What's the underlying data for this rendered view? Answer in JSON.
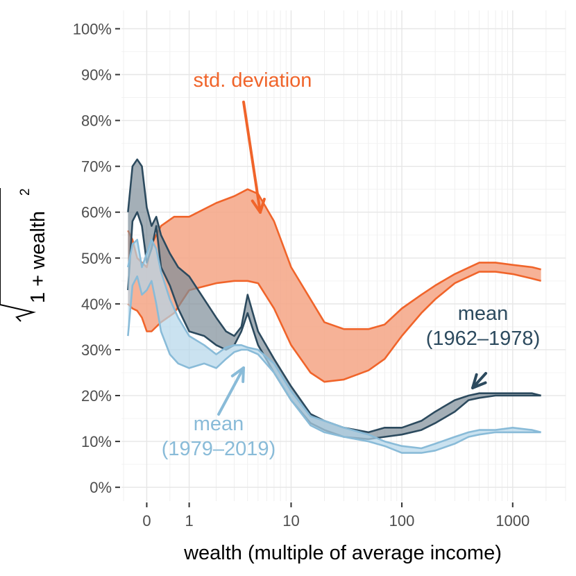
{
  "chart_data": {
    "type": "area",
    "xlabel": "wealth (multiple of average income)",
    "ylabel": "sqrt(1 + wealth^2)",
    "ylabel_parts": {
      "radicand": "1 + wealth",
      "exponent": "2"
    },
    "x_scale": "asinh",
    "x_ticks": [
      0,
      1,
      10,
      100,
      1000
    ],
    "x_tick_labels": [
      "0",
      "1",
      "10",
      "100",
      "1000"
    ],
    "y_ticks": [
      0,
      10,
      20,
      30,
      40,
      50,
      60,
      70,
      80,
      90,
      100
    ],
    "y_tick_labels": [
      "0%",
      "10%",
      "20%",
      "30%",
      "40%",
      "50%",
      "60%",
      "70%",
      "80%",
      "90%",
      "100%"
    ],
    "xlim": [
      -0.55,
      3000
    ],
    "ylim": [
      -3,
      104
    ],
    "grid": true,
    "legend": "none",
    "annotations": [
      {
        "id": "std",
        "lines": [
          "std. deviation"
        ],
        "color": "#f0642a"
      },
      {
        "id": "mean_early",
        "lines": [
          "mean",
          "(1962–1978)"
        ],
        "color": "#2c4a5e"
      },
      {
        "id": "mean_late",
        "lines": [
          "mean",
          "(1979–2019)"
        ],
        "color": "#89bbd8"
      }
    ],
    "series": [
      {
        "name": "std. deviation",
        "color": "#f0642a",
        "fill": "#f5a585",
        "x": [
          -0.4,
          -0.3,
          -0.2,
          -0.1,
          0,
          0.1,
          0.3,
          0.6,
          1,
          2,
          3,
          4,
          5,
          7,
          10,
          15,
          20,
          30,
          50,
          70,
          100,
          150,
          200,
          300,
          500,
          700,
          1000,
          1500,
          1800
        ],
        "lower": [
          40,
          39,
          38.5,
          37,
          34,
          34,
          36,
          38,
          43,
          44.5,
          45,
          45,
          44.5,
          39,
          31,
          25,
          23,
          23.5,
          25.5,
          28,
          33,
          38,
          41,
          44.5,
          47,
          47,
          46.5,
          45.5,
          45
        ],
        "upper": [
          56,
          54,
          50,
          49,
          48,
          53,
          57,
          59,
          59,
          62,
          63.5,
          65,
          64,
          58,
          48,
          41,
          36,
          34.5,
          34.5,
          35.5,
          39,
          42,
          44,
          46.5,
          49,
          49,
          48.5,
          48,
          47.5
        ]
      },
      {
        "name": "mean (1962–1978)",
        "color": "#2c4a5e",
        "fill": "#7e8d99",
        "x": [
          -0.4,
          -0.3,
          -0.2,
          -0.1,
          0,
          0.1,
          0.2,
          0.3,
          0.5,
          0.7,
          1,
          1.5,
          2,
          2.5,
          3,
          3.5,
          4,
          5,
          7,
          10,
          15,
          20,
          30,
          50,
          70,
          100,
          150,
          200,
          300,
          400,
          500,
          700,
          1000,
          1500,
          1800
        ],
        "lower": [
          43,
          58,
          60,
          57,
          49,
          52,
          57,
          48,
          44,
          39,
          34,
          33,
          31,
          30,
          31,
          34,
          38,
          31,
          25,
          19,
          14,
          12.5,
          11,
          10.5,
          11,
          11.5,
          12.5,
          14,
          16.5,
          19,
          19.5,
          20,
          20,
          20,
          20
        ],
        "upper": [
          60,
          70,
          71.5,
          70,
          61,
          57,
          59,
          55,
          51,
          48,
          46,
          41,
          37,
          34,
          33,
          35,
          42,
          34,
          28,
          22,
          16,
          14.5,
          13,
          12,
          13,
          13,
          14.5,
          16.5,
          19,
          20,
          20.5,
          20.5,
          20.5,
          20.5,
          20
        ]
      },
      {
        "name": "mean (1979–2019)",
        "color": "#89bbd8",
        "fill": "#b4d6ea",
        "x": [
          -0.4,
          -0.3,
          -0.2,
          -0.1,
          0,
          0.1,
          0.2,
          0.3,
          0.5,
          0.7,
          1,
          1.5,
          2,
          2.5,
          3,
          3.5,
          4,
          5,
          7,
          10,
          15,
          20,
          30,
          50,
          70,
          100,
          150,
          200,
          300,
          400,
          500,
          700,
          1000,
          1500,
          1800
        ],
        "lower": [
          33,
          44,
          46,
          42,
          43,
          45,
          40,
          34,
          29,
          27,
          26,
          27,
          26,
          28,
          29.5,
          30,
          30,
          29,
          25,
          19,
          13.5,
          12,
          11,
          10,
          9,
          7.5,
          7.5,
          8,
          9.5,
          11,
          11.5,
          12,
          12,
          12,
          12
        ],
        "upper": [
          48,
          53,
          54,
          48,
          51,
          54,
          52,
          47,
          41,
          37,
          33,
          31,
          29,
          30.5,
          31,
          31,
          30.5,
          30,
          27,
          21,
          15.5,
          14.5,
          13,
          11.5,
          10,
          9,
          8.5,
          9.5,
          11,
          12,
          12.5,
          12.5,
          13,
          12.5,
          12
        ]
      }
    ]
  }
}
